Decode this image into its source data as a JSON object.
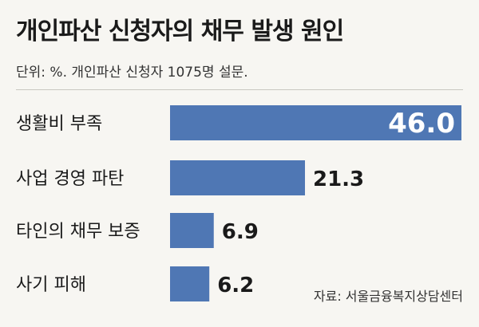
{
  "header": {
    "title": "개인파산 신청자의 채무 발생 원인",
    "subtitle": "단위: %. 개인파산 신청자 1075명 설문."
  },
  "footer": {
    "source": "자료: 서울금융복지상담센터"
  },
  "colors": {
    "bar": "#4f77b4",
    "bar_text_inside": "#ffffff",
    "bar_text_outside": "#1a1a1a",
    "background": "#f7f6f2"
  },
  "chart_data": {
    "type": "bar",
    "orientation": "horizontal",
    "title": "개인파산 신청자의 채무 발생 원인",
    "subtitle": "단위: %. 개인파산 신청자 1075명 설문.",
    "categories": [
      "생활비 부족",
      "사업 경영 파탄",
      "타인의 채무 보증",
      "사기 피해"
    ],
    "values": [
      46.0,
      21.3,
      6.9,
      6.2
    ],
    "value_labels": [
      "46.0",
      "21.3",
      "6.9",
      "6.2"
    ],
    "xlim": [
      0,
      46.0
    ],
    "grid": false,
    "legend": "none"
  }
}
